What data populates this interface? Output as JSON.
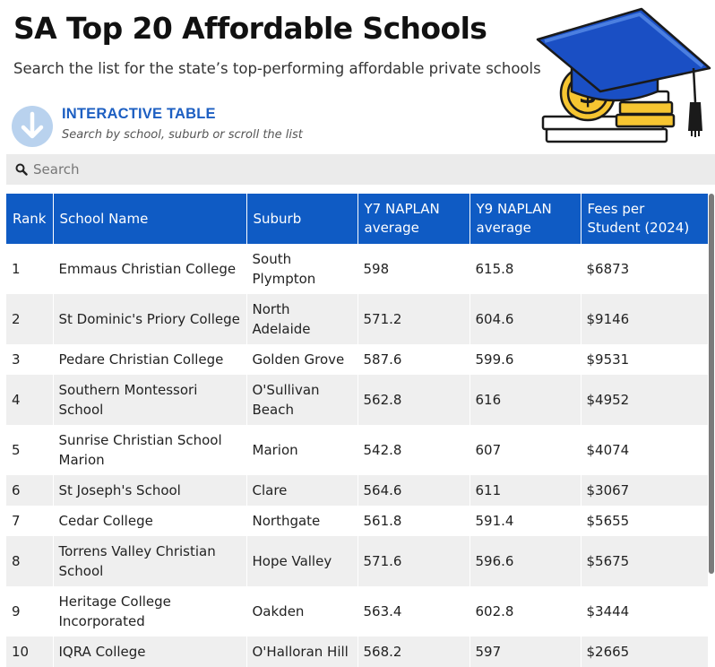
{
  "header": {
    "title": "SA Top 20 Affordable Schools",
    "subtitle": "Search the list for the state’s top-performing affordable private schools"
  },
  "interactive": {
    "title": "INTERACTIVE TABLE",
    "hint": "Search by school, suburb or scroll the list"
  },
  "search": {
    "placeholder": "Search",
    "icon": "search-icon"
  },
  "colors": {
    "accent": "#0f5bc4",
    "row_alt": "#efefef",
    "search_bg": "#ebebeb"
  },
  "table": {
    "headers": [
      "Rank",
      "School Name",
      "Suburb",
      "Y7 NAPLAN average",
      "Y9 NAPLAN average",
      "Fees per Student (2024)"
    ],
    "rows": [
      {
        "rank": "1",
        "name": "Emmaus Christian College",
        "suburb": "South Plympton",
        "y7": "598",
        "y9": "615.8",
        "fees": "$6873"
      },
      {
        "rank": "2",
        "name": "St Dominic's Priory College",
        "suburb": "North Adelaide",
        "y7": "571.2",
        "y9": "604.6",
        "fees": "$9146"
      },
      {
        "rank": "3",
        "name": "Pedare Christian College",
        "suburb": "Golden Grove",
        "y7": "587.6",
        "y9": "599.6",
        "fees": "$9531"
      },
      {
        "rank": "4",
        "name": "Southern Montessori School",
        "suburb": "O'Sullivan Beach",
        "y7": "562.8",
        "y9": "616",
        "fees": "$4952"
      },
      {
        "rank": "5",
        "name": "Sunrise Christian School Marion",
        "suburb": "Marion",
        "y7": "542.8",
        "y9": "607",
        "fees": "$4074"
      },
      {
        "rank": "6",
        "name": "St Joseph's School",
        "suburb": "Clare",
        "y7": "564.6",
        "y9": "611",
        "fees": "$3067"
      },
      {
        "rank": "7",
        "name": "Cedar College",
        "suburb": "Northgate",
        "y7": "561.8",
        "y9": "591.4",
        "fees": "$5655"
      },
      {
        "rank": "8",
        "name": "Torrens Valley Christian School",
        "suburb": "Hope Valley",
        "y7": "571.6",
        "y9": "596.6",
        "fees": "$5675"
      },
      {
        "rank": "9",
        "name": "Heritage College Incorporated",
        "suburb": "Oakden",
        "y7": "563.4",
        "y9": "602.8",
        "fees": "$3444"
      },
      {
        "rank": "10",
        "name": "IQRA College",
        "suburb": "O'Halloran Hill",
        "y7": "568.2",
        "y9": "597",
        "fees": "$2665"
      }
    ]
  }
}
